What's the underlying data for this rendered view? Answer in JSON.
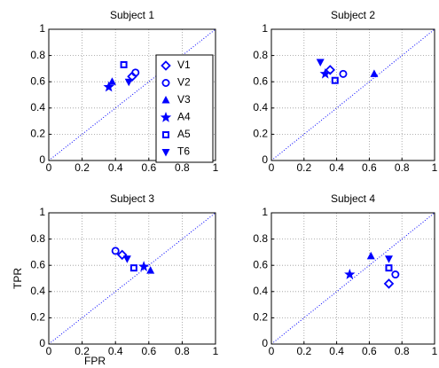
{
  "chart_data": [
    {
      "type": "scatter",
      "title": "Subject 1",
      "xlim": [
        0,
        1
      ],
      "ylim": [
        0,
        1
      ],
      "xticks": [
        0,
        0.2,
        0.4,
        0.6,
        0.8,
        1
      ],
      "yticks": [
        0,
        0.2,
        0.4,
        0.6,
        0.8,
        1
      ],
      "grid": true,
      "legend": "upper right",
      "series": [
        {
          "name": "V1",
          "color": "#0000ff",
          "marker": "diamond",
          "x": [
            0.5
          ],
          "values": [
            0.64
          ]
        },
        {
          "name": "V2",
          "color": "#0000ff",
          "marker": "circle",
          "x": [
            0.52
          ],
          "values": [
            0.67
          ]
        },
        {
          "name": "V3",
          "color": "#0000ff",
          "marker": "triangle-up",
          "x": [
            0.38
          ],
          "values": [
            0.6
          ]
        },
        {
          "name": "A4",
          "color": "#0000ff",
          "marker": "star",
          "x": [
            0.36
          ],
          "values": [
            0.56
          ]
        },
        {
          "name": "A5",
          "color": "#0000ff",
          "marker": "square",
          "x": [
            0.45
          ],
          "values": [
            0.73
          ]
        },
        {
          "name": "T6",
          "color": "#0000ff",
          "marker": "triangle-down",
          "x": [
            0.48
          ],
          "values": [
            0.6
          ]
        }
      ]
    },
    {
      "type": "scatter",
      "title": "Subject 2",
      "xlim": [
        0,
        1
      ],
      "ylim": [
        0,
        1
      ],
      "xticks": [
        0,
        0.2,
        0.4,
        0.6,
        0.8,
        1
      ],
      "yticks": [
        0,
        0.2,
        0.4,
        0.6,
        0.8,
        1
      ],
      "grid": true,
      "series": [
        {
          "color": "#0000ff",
          "marker": "diamond",
          "x": [
            0.36
          ],
          "values": [
            0.69
          ]
        },
        {
          "color": "#0000ff",
          "marker": "circle",
          "x": [
            0.44
          ],
          "values": [
            0.66
          ]
        },
        {
          "color": "#0000ff",
          "marker": "triangle-up",
          "x": [
            0.63
          ],
          "values": [
            0.66
          ]
        },
        {
          "color": "#0000ff",
          "marker": "star",
          "x": [
            0.33
          ],
          "values": [
            0.66
          ]
        },
        {
          "color": "#0000ff",
          "marker": "square",
          "x": [
            0.39
          ],
          "values": [
            0.61
          ]
        },
        {
          "color": "#0000ff",
          "marker": "triangle-down",
          "x": [
            0.3
          ],
          "values": [
            0.75
          ]
        }
      ]
    },
    {
      "type": "scatter",
      "title": "Subject 3",
      "xlabel": "FPR",
      "ylabel": "TPR",
      "xlim": [
        0,
        1
      ],
      "ylim": [
        0,
        1
      ],
      "xticks": [
        0,
        0.2,
        0.4,
        0.6,
        0.8,
        1
      ],
      "yticks": [
        0,
        0.2,
        0.4,
        0.6,
        0.8,
        1
      ],
      "grid": true,
      "series": [
        {
          "color": "#0000ff",
          "marker": "diamond",
          "x": [
            0.44
          ],
          "values": [
            0.68
          ]
        },
        {
          "color": "#0000ff",
          "marker": "circle",
          "x": [
            0.4
          ],
          "values": [
            0.71
          ]
        },
        {
          "color": "#0000ff",
          "marker": "triangle-up",
          "x": [
            0.61
          ],
          "values": [
            0.56
          ]
        },
        {
          "color": "#0000ff",
          "marker": "star",
          "x": [
            0.57
          ],
          "values": [
            0.59
          ]
        },
        {
          "color": "#0000ff",
          "marker": "square",
          "x": [
            0.51
          ],
          "values": [
            0.58
          ]
        },
        {
          "color": "#0000ff",
          "marker": "triangle-down",
          "x": [
            0.47
          ],
          "values": [
            0.65
          ]
        }
      ]
    },
    {
      "type": "scatter",
      "title": "Subject 4",
      "xlim": [
        0,
        1
      ],
      "ylim": [
        0,
        1
      ],
      "xticks": [
        0,
        0.2,
        0.4,
        0.6,
        0.8,
        1
      ],
      "yticks": [
        0,
        0.2,
        0.4,
        0.6,
        0.8,
        1
      ],
      "grid": true,
      "series": [
        {
          "color": "#0000ff",
          "marker": "diamond",
          "x": [
            0.72
          ],
          "values": [
            0.46
          ]
        },
        {
          "color": "#0000ff",
          "marker": "circle",
          "x": [
            0.76
          ],
          "values": [
            0.53
          ]
        },
        {
          "color": "#0000ff",
          "marker": "triangle-up",
          "x": [
            0.61
          ],
          "values": [
            0.67
          ]
        },
        {
          "color": "#0000ff",
          "marker": "star",
          "x": [
            0.48
          ],
          "values": [
            0.53
          ]
        },
        {
          "color": "#0000ff",
          "marker": "square",
          "x": [
            0.72
          ],
          "values": [
            0.58
          ]
        },
        {
          "color": "#0000ff",
          "marker": "triangle-down",
          "x": [
            0.72
          ],
          "values": [
            0.65
          ]
        }
      ]
    }
  ]
}
